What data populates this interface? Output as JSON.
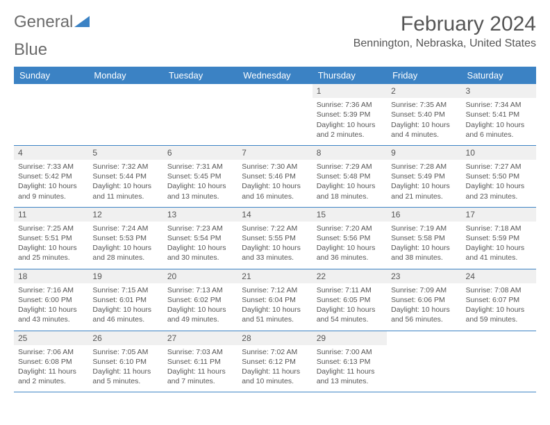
{
  "logo": {
    "text1": "General",
    "text2": "Blue"
  },
  "title": "February 2024",
  "location": "Bennington, Nebraska, United States",
  "colors": {
    "header_bg": "#3b82c4",
    "daynum_bg": "#f0f0f0",
    "text": "#555555",
    "logo_gray": "#6b6b6b",
    "logo_blue": "#3b82c4"
  },
  "dow": [
    "Sunday",
    "Monday",
    "Tuesday",
    "Wednesday",
    "Thursday",
    "Friday",
    "Saturday"
  ],
  "weeks": [
    [
      {
        "n": "",
        "sr": "",
        "ss": "",
        "dl": ""
      },
      {
        "n": "",
        "sr": "",
        "ss": "",
        "dl": ""
      },
      {
        "n": "",
        "sr": "",
        "ss": "",
        "dl": ""
      },
      {
        "n": "",
        "sr": "",
        "ss": "",
        "dl": ""
      },
      {
        "n": "1",
        "sr": "Sunrise: 7:36 AM",
        "ss": "Sunset: 5:39 PM",
        "dl": "Daylight: 10 hours and 2 minutes."
      },
      {
        "n": "2",
        "sr": "Sunrise: 7:35 AM",
        "ss": "Sunset: 5:40 PM",
        "dl": "Daylight: 10 hours and 4 minutes."
      },
      {
        "n": "3",
        "sr": "Sunrise: 7:34 AM",
        "ss": "Sunset: 5:41 PM",
        "dl": "Daylight: 10 hours and 6 minutes."
      }
    ],
    [
      {
        "n": "4",
        "sr": "Sunrise: 7:33 AM",
        "ss": "Sunset: 5:42 PM",
        "dl": "Daylight: 10 hours and 9 minutes."
      },
      {
        "n": "5",
        "sr": "Sunrise: 7:32 AM",
        "ss": "Sunset: 5:44 PM",
        "dl": "Daylight: 10 hours and 11 minutes."
      },
      {
        "n": "6",
        "sr": "Sunrise: 7:31 AM",
        "ss": "Sunset: 5:45 PM",
        "dl": "Daylight: 10 hours and 13 minutes."
      },
      {
        "n": "7",
        "sr": "Sunrise: 7:30 AM",
        "ss": "Sunset: 5:46 PM",
        "dl": "Daylight: 10 hours and 16 minutes."
      },
      {
        "n": "8",
        "sr": "Sunrise: 7:29 AM",
        "ss": "Sunset: 5:48 PM",
        "dl": "Daylight: 10 hours and 18 minutes."
      },
      {
        "n": "9",
        "sr": "Sunrise: 7:28 AM",
        "ss": "Sunset: 5:49 PM",
        "dl": "Daylight: 10 hours and 21 minutes."
      },
      {
        "n": "10",
        "sr": "Sunrise: 7:27 AM",
        "ss": "Sunset: 5:50 PM",
        "dl": "Daylight: 10 hours and 23 minutes."
      }
    ],
    [
      {
        "n": "11",
        "sr": "Sunrise: 7:25 AM",
        "ss": "Sunset: 5:51 PM",
        "dl": "Daylight: 10 hours and 25 minutes."
      },
      {
        "n": "12",
        "sr": "Sunrise: 7:24 AM",
        "ss": "Sunset: 5:53 PM",
        "dl": "Daylight: 10 hours and 28 minutes."
      },
      {
        "n": "13",
        "sr": "Sunrise: 7:23 AM",
        "ss": "Sunset: 5:54 PM",
        "dl": "Daylight: 10 hours and 30 minutes."
      },
      {
        "n": "14",
        "sr": "Sunrise: 7:22 AM",
        "ss": "Sunset: 5:55 PM",
        "dl": "Daylight: 10 hours and 33 minutes."
      },
      {
        "n": "15",
        "sr": "Sunrise: 7:20 AM",
        "ss": "Sunset: 5:56 PM",
        "dl": "Daylight: 10 hours and 36 minutes."
      },
      {
        "n": "16",
        "sr": "Sunrise: 7:19 AM",
        "ss": "Sunset: 5:58 PM",
        "dl": "Daylight: 10 hours and 38 minutes."
      },
      {
        "n": "17",
        "sr": "Sunrise: 7:18 AM",
        "ss": "Sunset: 5:59 PM",
        "dl": "Daylight: 10 hours and 41 minutes."
      }
    ],
    [
      {
        "n": "18",
        "sr": "Sunrise: 7:16 AM",
        "ss": "Sunset: 6:00 PM",
        "dl": "Daylight: 10 hours and 43 minutes."
      },
      {
        "n": "19",
        "sr": "Sunrise: 7:15 AM",
        "ss": "Sunset: 6:01 PM",
        "dl": "Daylight: 10 hours and 46 minutes."
      },
      {
        "n": "20",
        "sr": "Sunrise: 7:13 AM",
        "ss": "Sunset: 6:02 PM",
        "dl": "Daylight: 10 hours and 49 minutes."
      },
      {
        "n": "21",
        "sr": "Sunrise: 7:12 AM",
        "ss": "Sunset: 6:04 PM",
        "dl": "Daylight: 10 hours and 51 minutes."
      },
      {
        "n": "22",
        "sr": "Sunrise: 7:11 AM",
        "ss": "Sunset: 6:05 PM",
        "dl": "Daylight: 10 hours and 54 minutes."
      },
      {
        "n": "23",
        "sr": "Sunrise: 7:09 AM",
        "ss": "Sunset: 6:06 PM",
        "dl": "Daylight: 10 hours and 56 minutes."
      },
      {
        "n": "24",
        "sr": "Sunrise: 7:08 AM",
        "ss": "Sunset: 6:07 PM",
        "dl": "Daylight: 10 hours and 59 minutes."
      }
    ],
    [
      {
        "n": "25",
        "sr": "Sunrise: 7:06 AM",
        "ss": "Sunset: 6:08 PM",
        "dl": "Daylight: 11 hours and 2 minutes."
      },
      {
        "n": "26",
        "sr": "Sunrise: 7:05 AM",
        "ss": "Sunset: 6:10 PM",
        "dl": "Daylight: 11 hours and 5 minutes."
      },
      {
        "n": "27",
        "sr": "Sunrise: 7:03 AM",
        "ss": "Sunset: 6:11 PM",
        "dl": "Daylight: 11 hours and 7 minutes."
      },
      {
        "n": "28",
        "sr": "Sunrise: 7:02 AM",
        "ss": "Sunset: 6:12 PM",
        "dl": "Daylight: 11 hours and 10 minutes."
      },
      {
        "n": "29",
        "sr": "Sunrise: 7:00 AM",
        "ss": "Sunset: 6:13 PM",
        "dl": "Daylight: 11 hours and 13 minutes."
      },
      {
        "n": "",
        "sr": "",
        "ss": "",
        "dl": ""
      },
      {
        "n": "",
        "sr": "",
        "ss": "",
        "dl": ""
      }
    ]
  ]
}
